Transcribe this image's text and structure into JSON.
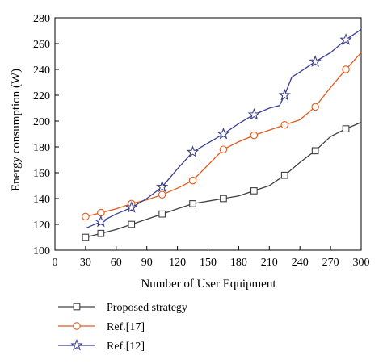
{
  "chart_data": {
    "type": "line",
    "xlabel": "Number of User Equipment",
    "ylabel": "Energy consumption (W)",
    "xlim": [
      0,
      300
    ],
    "ylim": [
      100,
      280
    ],
    "xticks": [
      0,
      30,
      60,
      90,
      120,
      150,
      180,
      210,
      240,
      270,
      300
    ],
    "yticks": [
      100,
      120,
      140,
      160,
      180,
      200,
      220,
      240,
      260,
      280
    ],
    "grid": false,
    "legend_position": "bottom-left",
    "series": [
      {
        "name": "Proposed strategy",
        "color": "#404040",
        "marker": "square",
        "x": [
          30,
          45,
          60,
          75,
          90,
          105,
          120,
          135,
          150,
          165,
          180,
          195,
          210,
          225,
          240,
          255,
          270,
          285,
          300
        ],
        "y": [
          110,
          113,
          116,
          120,
          124,
          128,
          132,
          136,
          138,
          140,
          142,
          146,
          150,
          158,
          168,
          177,
          188,
          194,
          199
        ],
        "marker_x": [
          30,
          45,
          75,
          105,
          135,
          165,
          195,
          225,
          255,
          285
        ],
        "marker_y": [
          110,
          113,
          120,
          128,
          136,
          140,
          146,
          158,
          177,
          194
        ]
      },
      {
        "name": "Ref.[17]",
        "color": "#e05a1e",
        "marker": "circle",
        "x": [
          30,
          45,
          60,
          75,
          90,
          105,
          120,
          135,
          150,
          165,
          180,
          195,
          210,
          225,
          240,
          255,
          270,
          285,
          300
        ],
        "y": [
          126,
          129,
          132,
          136,
          139,
          143,
          148,
          154,
          166,
          178,
          184,
          189,
          193,
          197,
          201,
          211,
          226,
          240,
          253
        ],
        "marker_x": [
          30,
          45,
          75,
          105,
          135,
          165,
          195,
          225,
          255,
          285
        ],
        "marker_y": [
          126,
          129,
          136,
          143,
          154,
          178,
          189,
          197,
          211,
          240
        ]
      },
      {
        "name": "Ref.[12]",
        "color": "#3b3f8f",
        "marker": "star",
        "x": [
          30,
          45,
          60,
          75,
          90,
          105,
          120,
          135,
          150,
          165,
          180,
          195,
          210,
          220,
          225,
          232,
          240,
          255,
          270,
          285,
          300
        ],
        "y": [
          117,
          122,
          128,
          133,
          140,
          149,
          163,
          176,
          183,
          190,
          198,
          205,
          210,
          212,
          220,
          234,
          238,
          246,
          253,
          263,
          271
        ],
        "marker_x": [
          45,
          75,
          105,
          135,
          165,
          195,
          225,
          255,
          285
        ],
        "marker_y": [
          122,
          133,
          149,
          176,
          190,
          205,
          220,
          246,
          263
        ]
      }
    ]
  }
}
